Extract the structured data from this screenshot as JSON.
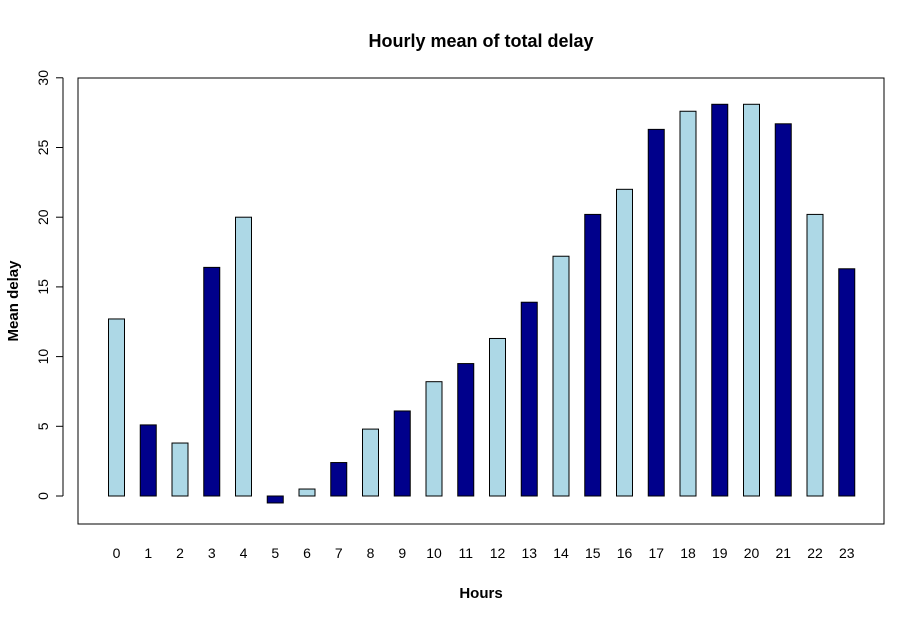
{
  "chart_data": {
    "type": "bar",
    "title": "Hourly mean of total delay",
    "xlabel": "Hours",
    "ylabel": "Mean delay",
    "categories": [
      "0",
      "1",
      "2",
      "3",
      "4",
      "5",
      "6",
      "7",
      "8",
      "9",
      "10",
      "11",
      "12",
      "13",
      "14",
      "15",
      "16",
      "17",
      "18",
      "19",
      "20",
      "21",
      "22",
      "23"
    ],
    "values": [
      12.7,
      5.1,
      3.8,
      16.4,
      20.0,
      -0.5,
      0.5,
      2.4,
      4.8,
      6.1,
      8.2,
      9.5,
      11.3,
      13.9,
      17.2,
      20.2,
      22.0,
      26.3,
      27.6,
      28.1,
      28.1,
      26.7,
      20.2,
      16.3
    ],
    "bar_colors": [
      "#ADD8E6",
      "#00008B",
      "#ADD8E6",
      "#00008B",
      "#ADD8E6",
      "#00008B",
      "#ADD8E6",
      "#00008B",
      "#ADD8E6",
      "#00008B",
      "#ADD8E6",
      "#00008B",
      "#ADD8E6",
      "#00008B",
      "#ADD8E6",
      "#00008B",
      "#ADD8E6",
      "#00008B",
      "#ADD8E6",
      "#00008B",
      "#ADD8E6",
      "#00008B",
      "#ADD8E6",
      "#00008B"
    ],
    "yticks": [
      0,
      5,
      10,
      15,
      20,
      25,
      30
    ],
    "ylim": [
      -2,
      30
    ],
    "grid": false,
    "legend": "none"
  }
}
